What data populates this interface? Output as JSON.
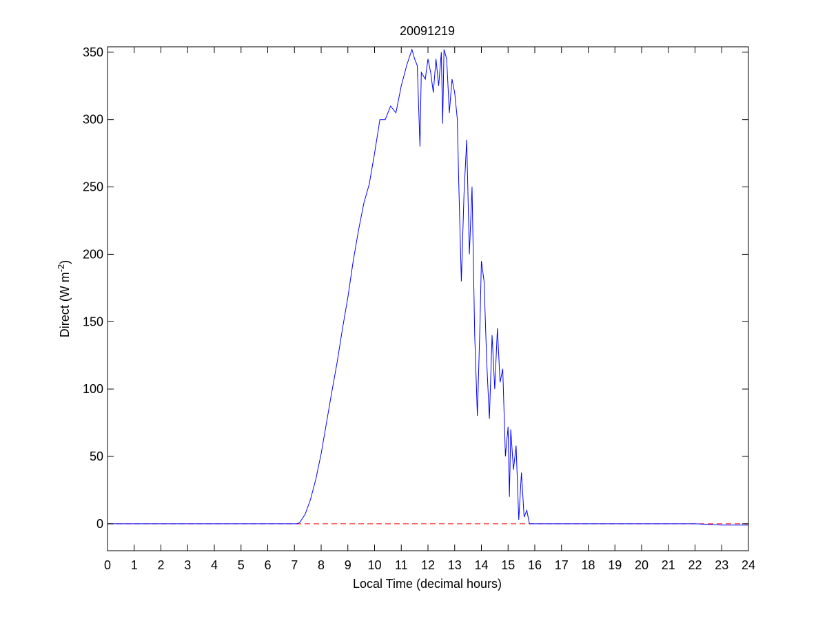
{
  "chart_data": {
    "type": "line",
    "title": "20091219",
    "xlabel": "Local Time (decimal hours)",
    "ylabel": [
      "Direct (W m",
      "-2",
      ")"
    ],
    "xlim": [
      0,
      24
    ],
    "xticks": [
      0,
      1,
      2,
      3,
      4,
      5,
      6,
      7,
      8,
      9,
      10,
      11,
      12,
      13,
      14,
      15,
      16,
      17,
      18,
      19,
      20,
      21,
      22,
      23,
      24
    ],
    "ylim": [
      -20,
      354
    ],
    "yticks": [
      0,
      50,
      100,
      150,
      200,
      250,
      300,
      350
    ],
    "grid": false,
    "reference_line": {
      "value": 0,
      "color": "#ff0000",
      "dashed": true
    },
    "series": [
      {
        "color": "#0000ff",
        "x": [
          0,
          7,
          7.1,
          7.2,
          7.4,
          7.6,
          7.8,
          8.0,
          8.2,
          8.4,
          8.6,
          8.8,
          9.0,
          9.2,
          9.4,
          9.6,
          9.8,
          10.0,
          10.2,
          10.4,
          10.6,
          10.8,
          11.0,
          11.2,
          11.4,
          11.5,
          11.6,
          11.7,
          11.75,
          11.9,
          12.0,
          12.1,
          12.2,
          12.3,
          12.4,
          12.5,
          12.55,
          12.6,
          12.7,
          12.8,
          12.9,
          13.0,
          13.1,
          13.15,
          13.25,
          13.35,
          13.45,
          13.55,
          13.65,
          13.75,
          13.85,
          13.95,
          14.0,
          14.1,
          14.2,
          14.3,
          14.4,
          14.5,
          14.6,
          14.7,
          14.8,
          14.9,
          15.0,
          15.05,
          15.1,
          15.2,
          15.3,
          15.4,
          15.5,
          15.6,
          15.7,
          15.8,
          16,
          22,
          23,
          24
        ],
        "values": [
          0,
          0,
          0,
          1,
          7,
          18,
          33,
          52,
          75,
          98,
          120,
          145,
          168,
          195,
          218,
          238,
          252,
          275,
          300,
          300,
          310,
          305,
          325,
          340,
          352,
          345,
          340,
          280,
          335,
          330,
          345,
          335,
          320,
          345,
          325,
          350,
          297,
          352,
          345,
          305,
          330,
          320,
          300,
          255,
          180,
          245,
          285,
          200,
          250,
          140,
          80,
          150,
          195,
          180,
          120,
          78,
          140,
          100,
          145,
          105,
          115,
          50,
          72,
          20,
          70,
          40,
          58,
          3,
          38,
          5,
          10,
          0,
          0,
          0,
          -1,
          -1
        ]
      }
    ]
  }
}
